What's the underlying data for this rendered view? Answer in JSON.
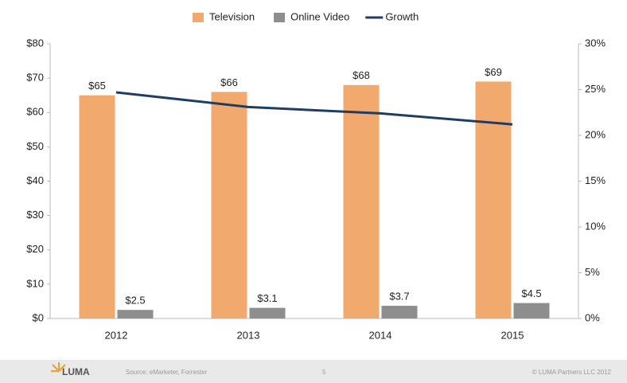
{
  "chart_data": {
    "type": "bar_line",
    "categories": [
      "2012",
      "2013",
      "2014",
      "2015"
    ],
    "series": [
      {
        "name": "Television",
        "color": "#f2a96e",
        "values": [
          65,
          66,
          68,
          69
        ],
        "value_labels": [
          "$65",
          "$66",
          "$68",
          "$69"
        ]
      },
      {
        "name": "Online Video",
        "color": "#8e8e8e",
        "values": [
          2.5,
          3.1,
          3.7,
          4.5
        ],
        "value_labels": [
          "$2.5",
          "$3.1",
          "$3.7",
          "$4.5"
        ]
      },
      {
        "name": "Growth",
        "color": "#1f3d63",
        "axis": "y2",
        "type": "line",
        "values": [
          24.7,
          23.1,
          22.4,
          21.2
        ]
      }
    ],
    "ylim": [
      0,
      80
    ],
    "yticks": [
      {
        "value": 0,
        "label": "$0"
      },
      {
        "value": 10,
        "label": "$10"
      },
      {
        "value": 20,
        "label": "$20"
      },
      {
        "value": 30,
        "label": "$30"
      },
      {
        "value": 40,
        "label": "$40"
      },
      {
        "value": 50,
        "label": "$50"
      },
      {
        "value": 60,
        "label": "$60"
      },
      {
        "value": 70,
        "label": "$70"
      },
      {
        "value": 80,
        "label": "$80"
      }
    ],
    "y2lim": [
      0,
      30
    ],
    "y2ticks": [
      {
        "value": 0,
        "label": "0%"
      },
      {
        "value": 5,
        "label": "5%"
      },
      {
        "value": 10,
        "label": "10%"
      },
      {
        "value": 15,
        "label": "15%"
      },
      {
        "value": 20,
        "label": "20%"
      },
      {
        "value": 25,
        "label": "25%"
      },
      {
        "value": 30,
        "label": "30%"
      }
    ],
    "grid": false,
    "legend": "top"
  },
  "footer": {
    "logo": "LUMA",
    "source": "Source: eMarketer, Forrester",
    "page": "5",
    "copyright": "© LUMA Partners LLC 2012"
  }
}
